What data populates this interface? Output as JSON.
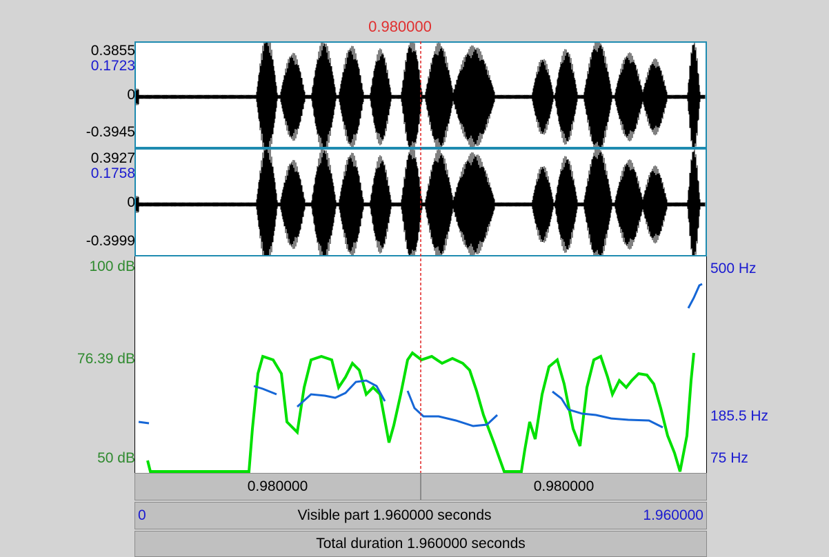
{
  "cursor": {
    "time": "0.980000"
  },
  "channel1": {
    "max": "0.3855",
    "mark": "0.1723",
    "zero": "0",
    "min": "-0.3945"
  },
  "channel2": {
    "max": "0.3927",
    "mark": "0.1758",
    "zero": "0",
    "min": "-0.3999"
  },
  "analysis": {
    "intensity_top": "100 dB",
    "intensity_mid": "76.39 dB",
    "intensity_bottom": "50 dB",
    "pitch_top": "500 Hz",
    "pitch_mid": "185.5 Hz",
    "pitch_bottom": "75 Hz",
    "intensity_color": "#00e000",
    "pitch_color": "#1566d6"
  },
  "selection_bar": {
    "left": "0.980000",
    "right": "0.980000"
  },
  "visible_bar": {
    "start": "0",
    "label": "Visible part 1.960000 seconds",
    "end": "1.960000"
  },
  "total_bar": {
    "label": "Total duration 1.960000 seconds"
  }
}
